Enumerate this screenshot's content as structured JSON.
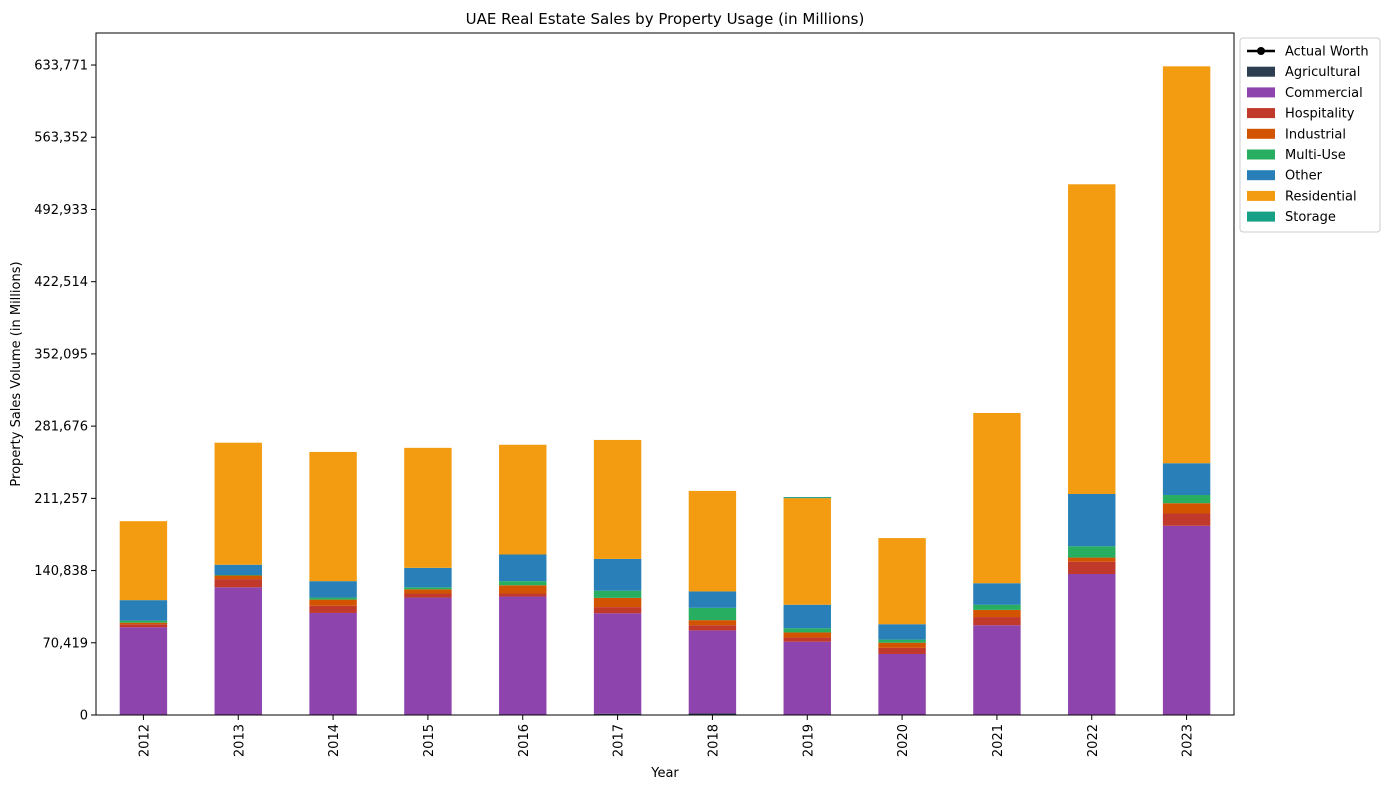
{
  "chart_data": {
    "type": "bar",
    "stacked": true,
    "title": "UAE Real Estate Sales by Property Usage (in Millions)",
    "xlabel": "Year",
    "ylabel": "Property Sales Volume (in Millions)",
    "categories": [
      "2012",
      "2013",
      "2014",
      "2015",
      "2016",
      "2017",
      "2018",
      "2019",
      "2020",
      "2021",
      "2022",
      "2023"
    ],
    "ylim": [
      0,
      665000
    ],
    "yticks": [
      0,
      70419,
      140838,
      211257,
      281676,
      352095,
      422514,
      492933,
      563352,
      633771
    ],
    "ytick_labels": [
      "0",
      "70,419",
      "140,838",
      "211,257",
      "281,676",
      "352,095",
      "422,514",
      "492,933",
      "563,352",
      "633,771"
    ],
    "grid": false,
    "legend_position": "outside-top-right",
    "legend": [
      {
        "name": "Actual Worth",
        "kind": "line",
        "color": "#000000"
      },
      {
        "name": "Agricultural",
        "kind": "bar",
        "color": "#2c3e50"
      },
      {
        "name": "Commercial",
        "kind": "bar",
        "color": "#8e44ad"
      },
      {
        "name": "Hospitality",
        "kind": "bar",
        "color": "#c0392b"
      },
      {
        "name": "Industrial",
        "kind": "bar",
        "color": "#d35400"
      },
      {
        "name": "Multi-Use",
        "kind": "bar",
        "color": "#27ae60"
      },
      {
        "name": "Other",
        "kind": "bar",
        "color": "#2980b9"
      },
      {
        "name": "Residential",
        "kind": "bar",
        "color": "#f39c12"
      },
      {
        "name": "Storage",
        "kind": "bar",
        "color": "#16a085"
      }
    ],
    "series": [
      {
        "name": "Agricultural",
        "color": "#2c3e50",
        "values": [
          500,
          500,
          500,
          500,
          500,
          1200,
          1500,
          500,
          500,
          500,
          500,
          500
        ]
      },
      {
        "name": "Commercial",
        "color": "#8e44ad",
        "values": [
          85000,
          124000,
          99000,
          114000,
          115000,
          98000,
          81000,
          71000,
          59000,
          87000,
          137000,
          184000
        ]
      },
      {
        "name": "Hospitality",
        "color": "#c0392b",
        "values": [
          3000,
          8000,
          7000,
          4000,
          3000,
          6000,
          5000,
          4000,
          6000,
          8000,
          12000,
          12000
        ]
      },
      {
        "name": "Industrial",
        "color": "#d35400",
        "values": [
          1500,
          3500,
          6000,
          4000,
          8000,
          9000,
          5000,
          5000,
          5000,
          7000,
          4000,
          10000
        ]
      },
      {
        "name": "Multi-Use",
        "color": "#27ae60",
        "values": [
          2000,
          500,
          2000,
          2000,
          4000,
          7000,
          12000,
          4000,
          3000,
          5000,
          11000,
          8000
        ]
      },
      {
        "name": "Other",
        "color": "#2980b9",
        "values": [
          20000,
          10000,
          16000,
          19000,
          26000,
          31000,
          16000,
          23000,
          15000,
          21000,
          51000,
          31000
        ]
      },
      {
        "name": "Residential",
        "color": "#f39c12",
        "values": [
          77000,
          119000,
          126000,
          117000,
          107000,
          116000,
          98000,
          104000,
          84000,
          166000,
          302000,
          387000
        ]
      },
      {
        "name": "Storage",
        "color": "#16a085",
        "values": [
          0,
          0,
          0,
          0,
          0,
          0,
          0,
          1000,
          0,
          0,
          0,
          0
        ]
      }
    ]
  }
}
